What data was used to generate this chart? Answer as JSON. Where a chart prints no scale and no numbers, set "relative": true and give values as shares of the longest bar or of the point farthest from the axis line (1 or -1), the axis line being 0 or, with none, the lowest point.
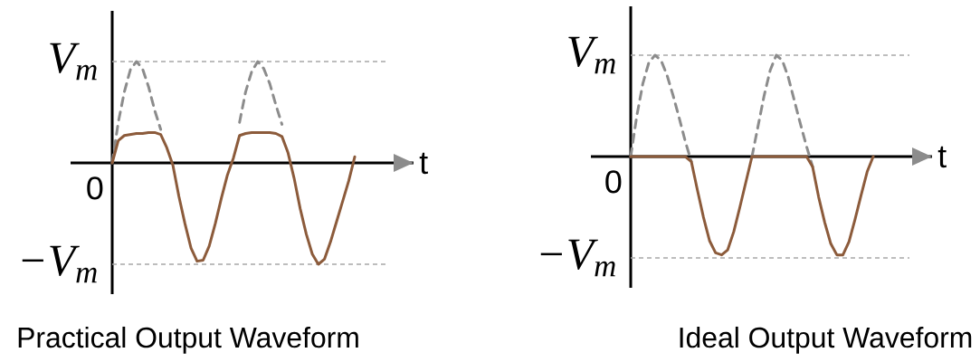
{
  "chart_data": [
    {
      "type": "line",
      "title": "Practical Output Waveform",
      "xlabel": "t",
      "relative": true,
      "annotations": [
        "0"
      ],
      "categories": [
        null,
        null,
        null,
        null,
        null,
        null,
        null,
        null,
        null,
        null,
        null,
        null,
        null,
        null,
        null,
        null,
        null,
        null,
        null,
        null,
        null,
        null,
        null,
        null,
        null,
        null,
        null,
        null,
        null,
        null,
        null,
        null,
        null,
        null,
        null,
        null,
        null,
        null,
        null,
        null,
        null
      ],
      "series": [
        {
          "color": "#8c8c8c",
          "line_style": "dashed",
          "values": [
            0,
            0.4,
            0.7,
            0.92,
            1.0,
            0.93,
            0.75,
            0.52,
            0.33,
            null,
            null,
            null,
            null,
            null,
            null,
            null,
            null,
            null,
            null,
            null,
            null,
            0.4,
            0.7,
            0.9,
            1.0,
            0.93,
            0.78,
            0.57,
            0.38,
            null,
            null,
            null,
            null,
            null,
            null,
            null,
            null,
            null,
            null,
            null,
            null
          ]
        },
        {
          "color": "#8c5b3b",
          "line_style": "solid",
          "values": [
            0,
            0.22,
            0.27,
            0.28,
            0.29,
            0.29,
            0.3,
            0.3,
            0.28,
            0.15,
            -0.02,
            -0.33,
            -0.6,
            -0.84,
            -0.97,
            -0.96,
            -0.82,
            -0.6,
            -0.35,
            -0.12,
            0.05,
            0.27,
            0.29,
            0.3,
            0.3,
            0.3,
            0.3,
            0.29,
            0.26,
            0.1,
            -0.15,
            -0.45,
            -0.7,
            -0.9,
            -1.0,
            -0.95,
            -0.78,
            -0.58,
            -0.38,
            -0.18,
            0.06
          ]
        }
      ],
      "ref_lines": [
        {
          "axis": "y",
          "value": 1,
          "label": "V$_{m}$",
          "color": "#a8a8a8",
          "line_style": "dashed"
        },
        {
          "axis": "y",
          "value": -1,
          "label": "−V$_{m}$",
          "color": "#a8a8a8",
          "line_style": "dashed"
        }
      ]
    },
    {
      "type": "line",
      "title": "Ideal Output Waveform",
      "xlabel": "t",
      "relative": true,
      "annotations": [
        "0"
      ],
      "categories": [
        null,
        null,
        null,
        null,
        null,
        null,
        null,
        null,
        null,
        null,
        null,
        null,
        null,
        null,
        null,
        null,
        null,
        null,
        null,
        null,
        null,
        null,
        null,
        null,
        null,
        null,
        null,
        null,
        null,
        null,
        null,
        null,
        null,
        null,
        null,
        null,
        null,
        null,
        null,
        null,
        null
      ],
      "series": [
        {
          "color": "#8c8c8c",
          "line_style": "dashed",
          "values": [
            0,
            0.4,
            0.72,
            0.93,
            1.0,
            0.95,
            0.8,
            0.6,
            0.38,
            0.15,
            -0.05,
            null,
            null,
            null,
            null,
            null,
            null,
            null,
            null,
            null,
            0.0,
            0.3,
            0.6,
            0.85,
            1.0,
            0.95,
            0.78,
            0.55,
            0.32,
            0.1,
            -0.1,
            null,
            null,
            null,
            null,
            null,
            null,
            null,
            null,
            null,
            null
          ]
        },
        {
          "color": "#8c5b3b",
          "line_style": "solid",
          "values": [
            0,
            0,
            0,
            0,
            0,
            0,
            0,
            0,
            0,
            0,
            -0.05,
            -0.33,
            -0.6,
            -0.83,
            -0.95,
            -0.97,
            -0.92,
            -0.74,
            -0.5,
            -0.25,
            0,
            0,
            0,
            0,
            0,
            0,
            0,
            0,
            0,
            0,
            -0.1,
            -0.4,
            -0.65,
            -0.86,
            -0.97,
            -0.97,
            -0.84,
            -0.62,
            -0.38,
            -0.15,
            0
          ]
        }
      ],
      "ref_lines": [
        {
          "axis": "y",
          "value": 1,
          "label": "V$_{m}$",
          "color": "#a8a8a8",
          "line_style": "dashed"
        },
        {
          "axis": "y",
          "value": -1,
          "label": "−V$_{m}$",
          "color": "#a8a8a8",
          "line_style": "dashed"
        }
      ]
    }
  ]
}
